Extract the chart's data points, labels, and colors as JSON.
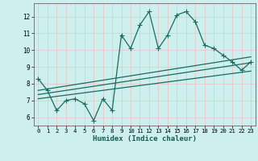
{
  "xlabel": "Humidex (Indice chaleur)",
  "bg_color": "#cdf0ee",
  "grid_color": "#e8c8c8",
  "line_color": "#1a6b5e",
  "x_ticks": [
    0,
    1,
    2,
    3,
    4,
    5,
    6,
    7,
    8,
    9,
    10,
    11,
    12,
    13,
    14,
    15,
    16,
    17,
    18,
    19,
    20,
    21,
    22,
    23
  ],
  "y_ticks": [
    6,
    7,
    8,
    9,
    10,
    11,
    12
  ],
  "ylim": [
    5.5,
    12.8
  ],
  "xlim": [
    -0.5,
    23.5
  ],
  "series1_x": [
    0,
    1,
    2,
    3,
    4,
    5,
    6,
    7,
    8,
    9,
    10,
    11,
    12,
    13,
    14,
    15,
    16,
    17,
    18,
    19,
    20,
    21,
    22,
    23
  ],
  "series1_y": [
    8.3,
    7.6,
    6.4,
    7.0,
    7.1,
    6.8,
    5.8,
    7.1,
    6.4,
    10.9,
    10.1,
    11.5,
    12.3,
    10.1,
    10.9,
    12.1,
    12.3,
    11.7,
    10.3,
    10.1,
    9.7,
    9.3,
    8.8,
    9.3
  ],
  "series2_x": [
    0,
    23
  ],
  "series2_y": [
    7.35,
    9.25
  ],
  "series3_x": [
    0,
    23
  ],
  "series3_y": [
    7.1,
    8.75
  ],
  "series4_x": [
    0,
    23
  ],
  "series4_y": [
    7.6,
    9.6
  ]
}
